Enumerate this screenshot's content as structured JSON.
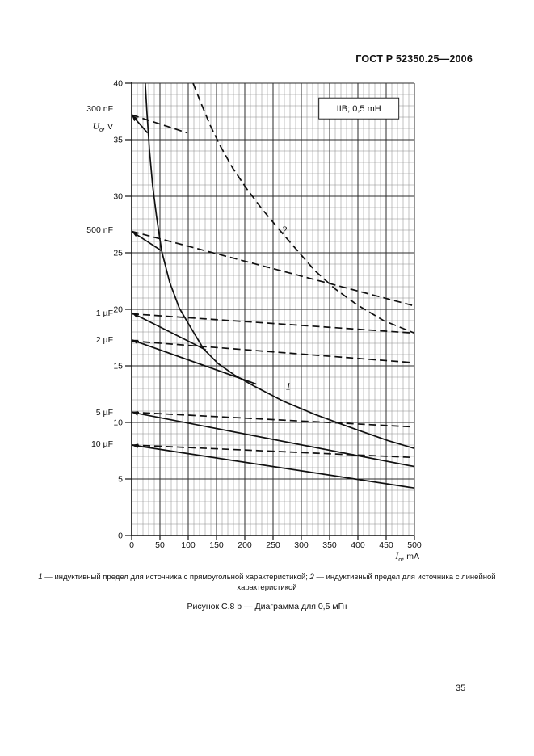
{
  "header": {
    "title": "ГОСТ Р 52350.25—2006"
  },
  "chart_data": {
    "type": "line",
    "group_label": "IIB; 0,5 mH",
    "xlabel": {
      "symbol": "I",
      "sub": "o",
      "unit": ", mA"
    },
    "ylabel": {
      "symbol": "U",
      "sub": "o",
      "unit": ", V"
    },
    "xlim": [
      0,
      500
    ],
    "ylim": [
      0,
      40
    ],
    "x_ticks": [
      0,
      50,
      100,
      150,
      200,
      250,
      300,
      350,
      400,
      450,
      500
    ],
    "y_ticks": [
      0,
      5,
      10,
      15,
      20,
      25,
      30,
      35,
      40
    ],
    "x_minor_step_mA": 10,
    "y_minor_step_V": 1,
    "grid": "on",
    "series": [
      {
        "name": "inductive-limit-rectangular-source",
        "curve_no": "1",
        "style": "solid",
        "arrow_start": false,
        "points": [
          [
            24,
            40
          ],
          [
            27,
            37.4
          ],
          [
            31.4,
            34.1
          ],
          [
            37.1,
            30.9
          ],
          [
            44.3,
            28.1
          ],
          [
            52.9,
            25.2
          ],
          [
            67.1,
            22.4
          ],
          [
            84.3,
            20.1
          ],
          [
            104.3,
            18.4
          ],
          [
            127.1,
            16.5
          ],
          [
            152.9,
            15.2
          ],
          [
            181.4,
            14.2
          ],
          [
            217.1,
            13.2
          ],
          [
            267.1,
            11.9
          ],
          [
            324.3,
            10.7
          ],
          [
            395.7,
            9.4
          ],
          [
            452.9,
            8.4
          ],
          [
            500,
            7.7
          ]
        ]
      },
      {
        "name": "inductive-limit-linear-source",
        "curve_no": "2",
        "style": "dashed",
        "arrow_start": false,
        "points": [
          [
            108.6,
            40
          ],
          [
            122.9,
            38.2
          ],
          [
            138.6,
            36.3
          ],
          [
            157.1,
            34.4
          ],
          [
            178.6,
            32.5
          ],
          [
            202.9,
            30.7
          ],
          [
            230,
            28.9
          ],
          [
            260,
            27.1
          ],
          [
            292.9,
            25.2
          ],
          [
            324.3,
            23.4
          ],
          [
            360,
            21.8
          ],
          [
            398.6,
            20.4
          ],
          [
            445.7,
            19.0
          ],
          [
            500,
            17.9
          ]
        ]
      },
      {
        "name": "cap-300nF-rectangular",
        "style": "solid",
        "arrow_start": true,
        "points": [
          [
            0,
            37.2
          ],
          [
            28,
            35.6
          ]
        ]
      },
      {
        "name": "cap-300nF-linear",
        "style": "dashed",
        "arrow_start": false,
        "points": [
          [
            0,
            37.2
          ],
          [
            98.6,
            35.6
          ]
        ]
      },
      {
        "name": "cap-500nF-rectangular",
        "style": "solid",
        "arrow_start": true,
        "points": [
          [
            0,
            26.9
          ],
          [
            52,
            25.2
          ]
        ]
      },
      {
        "name": "cap-500nF-linear",
        "style": "dashed",
        "arrow_start": false,
        "points": [
          [
            0,
            26.9
          ],
          [
            500,
            20.3
          ]
        ]
      },
      {
        "name": "cap-1uF-rectangular",
        "style": "solid",
        "arrow_start": true,
        "points": [
          [
            0,
            19.7
          ],
          [
            131.4,
            16.4
          ]
        ]
      },
      {
        "name": "cap-1uF-linear",
        "style": "dashed",
        "arrow_start": false,
        "points": [
          [
            0,
            19.6
          ],
          [
            500,
            17.9
          ]
        ]
      },
      {
        "name": "cap-2uF-rectangular",
        "style": "solid",
        "arrow_start": true,
        "points": [
          [
            0,
            17.3
          ],
          [
            220,
            13.4
          ]
        ]
      },
      {
        "name": "cap-2uF-linear",
        "style": "dashed",
        "arrow_start": false,
        "points": [
          [
            0,
            17.2
          ],
          [
            493,
            15.3
          ]
        ]
      },
      {
        "name": "cap-5uF-rectangular",
        "style": "solid",
        "arrow_start": true,
        "points": [
          [
            0,
            10.9
          ],
          [
            500,
            6.1
          ]
        ]
      },
      {
        "name": "cap-5uF-linear",
        "style": "dashed",
        "arrow_start": false,
        "points": [
          [
            0,
            10.9
          ],
          [
            500,
            9.6
          ]
        ]
      },
      {
        "name": "cap-10uF-rectangular",
        "style": "solid",
        "arrow_start": true,
        "points": [
          [
            0,
            8.0
          ],
          [
            500,
            4.2
          ]
        ]
      },
      {
        "name": "cap-10uF-linear",
        "style": "dashed",
        "arrow_start": false,
        "points": [
          [
            0,
            8.0
          ],
          [
            500,
            6.9
          ]
        ]
      }
    ],
    "curve_labels": [
      {
        "text": "2",
        "mA": 270,
        "V": 26.7
      },
      {
        "text": "1",
        "mA": 277,
        "V": 12.9
      }
    ],
    "cap_labels": [
      {
        "text": "300 nF"
      },
      {
        "text": "500 nF"
      },
      {
        "text": "1 µF"
      },
      {
        "text": "2 µF"
      },
      {
        "text": "5 µF"
      },
      {
        "text": "10 µF"
      }
    ],
    "colors": {
      "ink": "#111111",
      "grid_minor": "#8d8d8d",
      "grid_major": "#2b2b2b"
    }
  },
  "caption": {
    "num1": "1",
    "text1": " — индуктивный предел для источника с прямоугольной характеристикой; ",
    "num2": "2",
    "text2": " — индуктивный предел для источника с линейной",
    "line2": "характеристикой"
  },
  "figure_caption": "Рисунок С.8 b — Диаграмма для 0,5 мГн",
  "page_number": "35"
}
